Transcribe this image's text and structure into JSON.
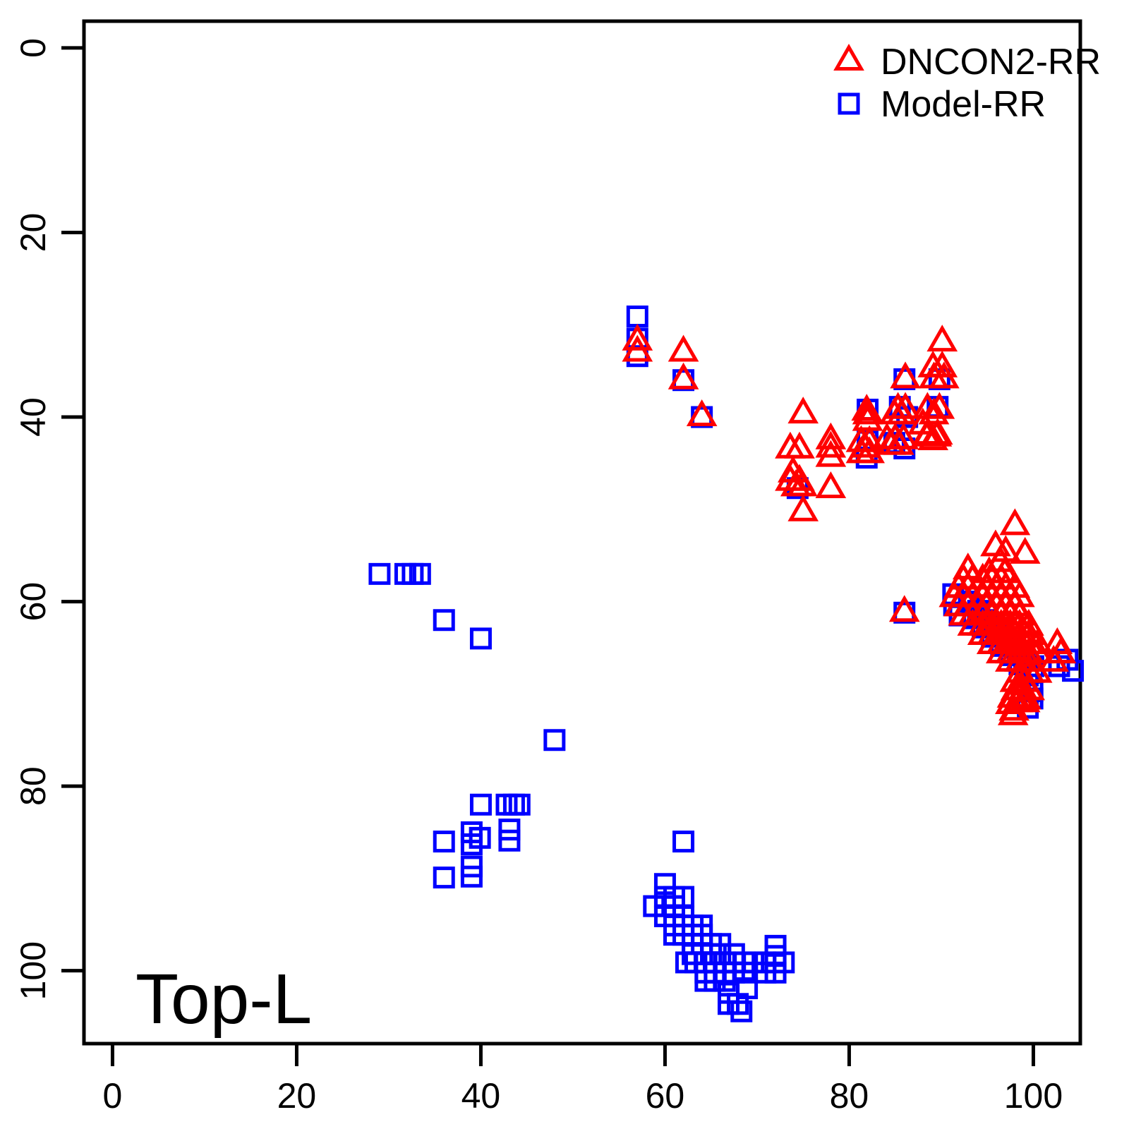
{
  "figure": {
    "background": "#FFFFFF",
    "text_color": "#000000"
  },
  "chart_data": {
    "type": "scatter",
    "title": "",
    "xlabel": "",
    "ylabel": "",
    "annotation": "Top-L",
    "grid": false,
    "legend_position": "top-right",
    "xlim": [
      -3.1,
      105.1
    ],
    "ylim": [
      107.9,
      -2.9
    ],
    "x_ticks": [
      0,
      20,
      40,
      60,
      80,
      100
    ],
    "y_ticks": [
      0,
      20,
      40,
      60,
      80,
      100
    ],
    "series": [
      {
        "name": "Model-RR",
        "marker": "square",
        "color": "#0000FF",
        "points": [
          [
            57,
            29.1
          ],
          [
            57,
            31.5
          ],
          [
            57,
            33.4
          ],
          [
            62,
            36
          ],
          [
            64,
            40
          ],
          [
            29,
            57
          ],
          [
            31.8,
            57
          ],
          [
            32.6,
            57
          ],
          [
            33.4,
            57
          ],
          [
            36,
            62
          ],
          [
            40,
            64
          ],
          [
            48,
            75
          ],
          [
            86,
            35.9
          ],
          [
            89.8,
            35.9
          ],
          [
            85.5,
            38.9
          ],
          [
            82,
            39.2
          ],
          [
            89.6,
            38.9
          ],
          [
            86.3,
            40
          ],
          [
            82,
            42.6
          ],
          [
            84.9,
            42.8
          ],
          [
            86,
            43.4
          ],
          [
            81.9,
            44.4
          ],
          [
            74.4,
            47.7
          ],
          [
            86,
            61.2
          ],
          [
            91.3,
            59.2
          ],
          [
            91.4,
            60.4
          ],
          [
            92,
            61.5
          ],
          [
            93,
            60
          ],
          [
            94,
            61
          ],
          [
            95,
            62
          ],
          [
            93.5,
            61.8
          ],
          [
            94.5,
            62.8
          ],
          [
            96,
            63
          ],
          [
            95.5,
            63.8
          ],
          [
            96.5,
            64.8
          ],
          [
            97,
            64
          ],
          [
            98,
            65
          ],
          [
            97.5,
            65.8
          ],
          [
            98.5,
            66.8
          ],
          [
            99,
            66
          ],
          [
            100,
            67
          ],
          [
            99.4,
            68
          ],
          [
            103.7,
            66.3
          ],
          [
            104.3,
            67.5
          ],
          [
            102.8,
            67
          ],
          [
            99.9,
            69.7
          ],
          [
            99.9,
            70.5
          ],
          [
            99.4,
            71.5
          ],
          [
            40,
            82
          ],
          [
            42.8,
            82
          ],
          [
            43.6,
            82
          ],
          [
            44.2,
            82
          ],
          [
            36,
            86
          ],
          [
            39,
            85
          ],
          [
            39.9,
            85.6
          ],
          [
            39,
            86.3
          ],
          [
            43.1,
            84.7
          ],
          [
            43.1,
            85.9
          ],
          [
            36,
            89.9
          ],
          [
            39,
            88.7
          ],
          [
            39,
            89.8
          ],
          [
            62,
            86
          ],
          [
            60,
            90.6
          ],
          [
            60,
            92
          ],
          [
            61,
            92
          ],
          [
            62,
            92
          ],
          [
            58.8,
            93
          ],
          [
            60,
            93
          ],
          [
            61,
            93
          ],
          [
            60,
            94.1
          ],
          [
            61,
            94.1
          ],
          [
            62,
            94.1
          ],
          [
            61,
            95.1
          ],
          [
            62,
            95.1
          ],
          [
            63,
            95.1
          ],
          [
            64,
            95.1
          ],
          [
            61,
            96.1
          ],
          [
            62,
            96.1
          ],
          [
            63,
            96.1
          ],
          [
            64,
            96.1
          ],
          [
            63,
            97.1
          ],
          [
            64,
            97.1
          ],
          [
            65,
            97.1
          ],
          [
            66,
            97.1
          ],
          [
            72,
            97.3
          ],
          [
            63,
            98.2
          ],
          [
            65,
            98.2
          ],
          [
            66,
            98.2
          ],
          [
            67.5,
            98.2
          ],
          [
            72,
            98.4
          ],
          [
            62.3,
            99.1
          ],
          [
            63.3,
            99.1
          ],
          [
            64.4,
            99.1
          ],
          [
            65.4,
            99.1
          ],
          [
            66.5,
            99.1
          ],
          [
            67.5,
            99.1
          ],
          [
            68.6,
            99.1
          ],
          [
            69.6,
            99.1
          ],
          [
            70.9,
            99.1
          ],
          [
            72,
            99.1
          ],
          [
            72.9,
            99.1
          ],
          [
            64.4,
            100.2
          ],
          [
            65.4,
            100.2
          ],
          [
            66.5,
            100.2
          ],
          [
            67.5,
            100.2
          ],
          [
            68.6,
            100.2
          ],
          [
            70.9,
            100.2
          ],
          [
            72,
            100.2
          ],
          [
            64.4,
            101.1
          ],
          [
            65.4,
            101.1
          ],
          [
            66.5,
            101.1
          ],
          [
            68.9,
            101.9
          ],
          [
            66.9,
            102.4
          ],
          [
            66.9,
            103.6
          ],
          [
            67.9,
            103.6
          ],
          [
            68.3,
            104.4
          ]
        ]
      },
      {
        "name": "DNCON2-RR",
        "marker": "triangle",
        "color": "#FF0000",
        "points": [
          [
            57,
            31.8
          ],
          [
            57,
            33
          ],
          [
            62,
            33
          ],
          [
            62,
            36
          ],
          [
            64,
            40
          ],
          [
            90.1,
            31.9
          ],
          [
            89.1,
            34.7
          ],
          [
            90.1,
            34.7
          ],
          [
            86.1,
            35.9
          ],
          [
            89.2,
            35.9
          ],
          [
            90.3,
            35.9
          ],
          [
            75,
            39.7
          ],
          [
            81.9,
            39.4
          ],
          [
            82,
            39.8
          ],
          [
            82,
            40.5
          ],
          [
            85.3,
            39.2
          ],
          [
            86.1,
            39.2
          ],
          [
            85.7,
            39.8
          ],
          [
            84.9,
            39.8
          ],
          [
            88.5,
            39.2
          ],
          [
            89.8,
            39.2
          ],
          [
            89.2,
            39.8
          ],
          [
            88,
            40.9
          ],
          [
            88.6,
            42
          ],
          [
            89.6,
            42
          ],
          [
            89.1,
            42.6
          ],
          [
            73.6,
            43.5
          ],
          [
            74.6,
            43.5
          ],
          [
            78,
            42.5
          ],
          [
            78,
            43.4
          ],
          [
            78,
            44.4
          ],
          [
            81.3,
            42.8
          ],
          [
            82.2,
            42.8
          ],
          [
            81.7,
            43.4
          ],
          [
            81.3,
            44
          ],
          [
            82.2,
            44
          ],
          [
            84.1,
            42.5
          ],
          [
            85,
            42.5
          ],
          [
            85.9,
            42.5
          ],
          [
            84.5,
            43.1
          ],
          [
            85.4,
            43.1
          ],
          [
            88.4,
            42.2
          ],
          [
            89.5,
            42.2
          ],
          [
            73.9,
            46.1
          ],
          [
            73.6,
            47
          ],
          [
            74.6,
            47
          ],
          [
            74.2,
            47.6
          ],
          [
            74.9,
            47.6
          ],
          [
            78,
            47.8
          ],
          [
            75,
            50.3
          ],
          [
            98,
            51.8
          ],
          [
            95.9,
            54.1
          ],
          [
            97,
            54.7
          ],
          [
            99.1,
            54.9
          ],
          [
            96.4,
            55.8
          ],
          [
            92.9,
            56.6
          ],
          [
            95.2,
            57
          ],
          [
            96.9,
            57
          ],
          [
            92.4,
            57.7
          ],
          [
            93.4,
            57.7
          ],
          [
            94.5,
            57.7
          ],
          [
            95.5,
            57.7
          ],
          [
            96.5,
            57.7
          ],
          [
            91.9,
            58.6
          ],
          [
            92.9,
            58.6
          ],
          [
            94,
            58.6
          ],
          [
            94.9,
            58.6
          ],
          [
            96,
            58.6
          ],
          [
            97,
            58.6
          ],
          [
            98,
            58.6
          ],
          [
            91.4,
            59.6
          ],
          [
            92.4,
            59.6
          ],
          [
            93.4,
            59.6
          ],
          [
            94.5,
            59.6
          ],
          [
            95.5,
            59.6
          ],
          [
            96.5,
            59.6
          ],
          [
            97.5,
            59.6
          ],
          [
            98.5,
            59.6
          ],
          [
            91.9,
            60.6
          ],
          [
            92.9,
            60.6
          ],
          [
            94,
            60.6
          ],
          [
            94.9,
            60.6
          ],
          [
            96,
            60.6
          ],
          [
            97,
            60.6
          ],
          [
            98,
            60.6
          ],
          [
            92.4,
            61.6
          ],
          [
            93.4,
            61.6
          ],
          [
            94.5,
            61.6
          ],
          [
            95.5,
            61.6
          ],
          [
            96.5,
            61.6
          ],
          [
            97.5,
            61.6
          ],
          [
            98.5,
            61.6
          ],
          [
            93.4,
            62.7
          ],
          [
            94.5,
            62.7
          ],
          [
            95.5,
            62.7
          ],
          [
            96.5,
            62.7
          ],
          [
            97.5,
            62.7
          ],
          [
            98.5,
            62.7
          ],
          [
            99.5,
            62.7
          ],
          [
            94.5,
            63.7
          ],
          [
            95.5,
            63.7
          ],
          [
            96.5,
            63.7
          ],
          [
            97.5,
            63.7
          ],
          [
            98.5,
            63.7
          ],
          [
            99.5,
            63.7
          ],
          [
            95.5,
            64.7
          ],
          [
            96.5,
            64.7
          ],
          [
            97.5,
            64.7
          ],
          [
            98.5,
            64.7
          ],
          [
            99.5,
            64.7
          ],
          [
            100.5,
            64.7
          ],
          [
            102.6,
            64.7
          ],
          [
            96.5,
            65.7
          ],
          [
            97.5,
            65.7
          ],
          [
            98.5,
            65.7
          ],
          [
            99.5,
            65.7
          ],
          [
            100.5,
            65.7
          ],
          [
            103,
            65.7
          ],
          [
            97.5,
            66.6
          ],
          [
            98.5,
            66.6
          ],
          [
            99.5,
            66.6
          ],
          [
            102.2,
            66.6
          ],
          [
            98.6,
            67.8
          ],
          [
            99.6,
            67.8
          ],
          [
            100.4,
            67.8
          ],
          [
            98,
            68.8
          ],
          [
            99,
            68.8
          ],
          [
            98.1,
            69.7
          ],
          [
            98.9,
            69.7
          ],
          [
            99.6,
            69.7
          ],
          [
            97.7,
            70.5
          ],
          [
            98.5,
            70.5
          ],
          [
            99.2,
            70.7
          ],
          [
            97.5,
            71.2
          ],
          [
            98.3,
            71
          ],
          [
            99.1,
            71
          ],
          [
            97.9,
            71.9
          ],
          [
            97.8,
            72.4
          ],
          [
            86,
            61.2
          ]
        ]
      }
    ]
  },
  "legend": {
    "items": [
      {
        "label": "DNCON2-RR",
        "marker": "triangle-icon",
        "color": "#FF0000"
      },
      {
        "label": "Model-RR",
        "marker": "square-icon",
        "color": "#0000FF"
      }
    ]
  }
}
